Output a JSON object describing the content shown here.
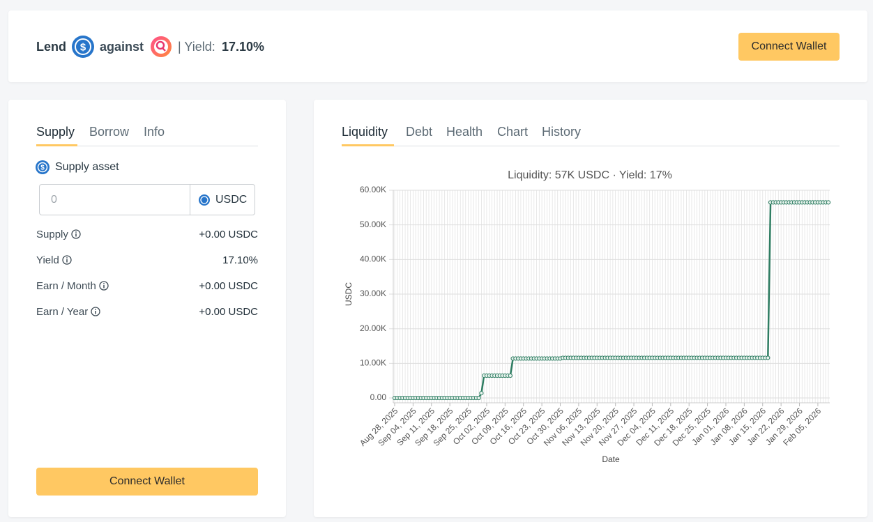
{
  "header": {
    "lend": "Lend",
    "against": "against",
    "yield_label": "| Yield:",
    "yield_value": "17.10%",
    "button": "Connect Wallet"
  },
  "left": {
    "tabs": [
      "Supply",
      "Borrow",
      "Info"
    ],
    "asset_label": "Supply asset",
    "input_placeholder": "0",
    "input_token": "USDC",
    "rows": [
      [
        "Supply",
        "+0.00 USDC"
      ],
      [
        "Yield",
        "17.10%"
      ],
      [
        "Earn / Month",
        "+0.00 USDC"
      ],
      [
        "Earn / Year",
        "+0.00 USDC"
      ]
    ],
    "button": "Connect Wallet"
  },
  "right": {
    "tabs": [
      "Liquidity",
      "Debt",
      "Health",
      "Chart",
      "History"
    ]
  },
  "chart_data": {
    "type": "line",
    "title": "Liquidity: 57K USDC · Yield: 17%",
    "x_label": "Date",
    "y_label": "USDC",
    "grid": true,
    "categories": [
      "Aug 28, 2025",
      null,
      null,
      null,
      null,
      null,
      null,
      "Sep 04, 2025",
      null,
      null,
      null,
      null,
      null,
      null,
      "Sep 11, 2025",
      null,
      null,
      null,
      null,
      null,
      null,
      "Sep 18, 2025",
      null,
      null,
      null,
      null,
      null,
      null,
      "Sep 25, 2025",
      null,
      null,
      null,
      null,
      null,
      null,
      "Oct 02, 2025",
      null,
      null,
      null,
      null,
      null,
      null,
      "Oct 09, 2025",
      null,
      null,
      null,
      null,
      null,
      null,
      "Oct 16, 2025",
      null,
      null,
      null,
      null,
      null,
      null,
      "Oct 23, 2025",
      null,
      null,
      null,
      null,
      null,
      null,
      "Oct 30, 2025",
      null,
      null,
      null,
      null,
      null,
      null,
      "Nov 06, 2025",
      null,
      null,
      null,
      null,
      null,
      null,
      "Nov 13, 2025",
      null,
      null,
      null,
      null,
      null,
      null,
      "Nov 20, 2025",
      null,
      null,
      null,
      null,
      null,
      null,
      "Nov 27, 2025",
      null,
      null,
      null,
      null,
      null,
      null,
      "Dec 04, 2025",
      null,
      null,
      null,
      null,
      null,
      null,
      "Dec 11, 2025",
      null,
      null,
      null,
      null,
      null,
      null,
      "Dec 18, 2025",
      null,
      null,
      null,
      null,
      null,
      null,
      "Dec 25, 2025",
      null,
      null,
      null,
      null,
      null,
      null,
      "Jan 01, 2026",
      null,
      null,
      null,
      null,
      null,
      null,
      "Jan 08, 2026",
      null,
      null,
      null,
      null,
      null,
      null,
      "Jan 15, 2026",
      null,
      null,
      null,
      null,
      null,
      null,
      "Jan 22, 2026",
      null,
      null,
      null,
      null,
      null,
      null,
      "Jan 29, 2026",
      null,
      null,
      null,
      null,
      null,
      null,
      "Feb 05, 2026",
      null,
      null,
      null,
      null
    ],
    "series": [
      {
        "name": "Liquidity",
        "color": "#2e7d62",
        "values": [
          0,
          0,
          0,
          0,
          0,
          0,
          0,
          0,
          0,
          0,
          0,
          0,
          0,
          0,
          0,
          0,
          0,
          0,
          0,
          0,
          0,
          0,
          0,
          0,
          0,
          0,
          0,
          0,
          0,
          0,
          0,
          0,
          0,
          1400,
          6450,
          6450,
          6450,
          6450,
          6450,
          6450,
          6450,
          6450,
          6450,
          6450,
          6450,
          11400,
          11400,
          11400,
          11400,
          11400,
          11400,
          11400,
          11400,
          11400,
          11400,
          11400,
          11400,
          11400,
          11400,
          11400,
          11400,
          11400,
          11400,
          11400,
          11600,
          11600,
          11600,
          11600,
          11600,
          11600,
          11600,
          11600,
          11600,
          11600,
          11600,
          11600,
          11600,
          11600,
          11600,
          11600,
          11600,
          11600,
          11600,
          11600,
          11600,
          11600,
          11600,
          11600,
          11600,
          11600,
          11600,
          11600,
          11600,
          11600,
          11600,
          11600,
          11600,
          11600,
          11600,
          11600,
          11600,
          11600,
          11600,
          11600,
          11600,
          11600,
          11600,
          11600,
          11600,
          11600,
          11600,
          11600,
          11600,
          11600,
          11600,
          11600,
          11600,
          11600,
          11600,
          11600,
          11600,
          11600,
          11600,
          11600,
          11600,
          11600,
          11600,
          11600,
          11600,
          11600,
          11600,
          11600,
          11600,
          11600,
          11600,
          11600,
          11600,
          11600,
          11600,
          11600,
          11600,
          11600,
          11600,
          56500,
          56500,
          56500,
          56500,
          56500,
          56500,
          56500,
          56500,
          56500,
          56500,
          56500,
          56500,
          56500,
          56500,
          56500,
          56500,
          56500,
          56500,
          56500,
          56500,
          56500,
          56500,
          56500
        ]
      }
    ],
    "ylim": [
      -1400,
      60000
    ],
    "yticks": [
      {
        "value": 0,
        "label": "0.00"
      },
      {
        "value": 10000,
        "label": "10.00K"
      },
      {
        "value": 20000,
        "label": "20.00K"
      },
      {
        "value": 30000,
        "label": "30.00K"
      },
      {
        "value": 40000,
        "label": "40.00K"
      },
      {
        "value": 50000,
        "label": "50.00K"
      },
      {
        "value": 60000,
        "label": "60.00K"
      }
    ]
  }
}
